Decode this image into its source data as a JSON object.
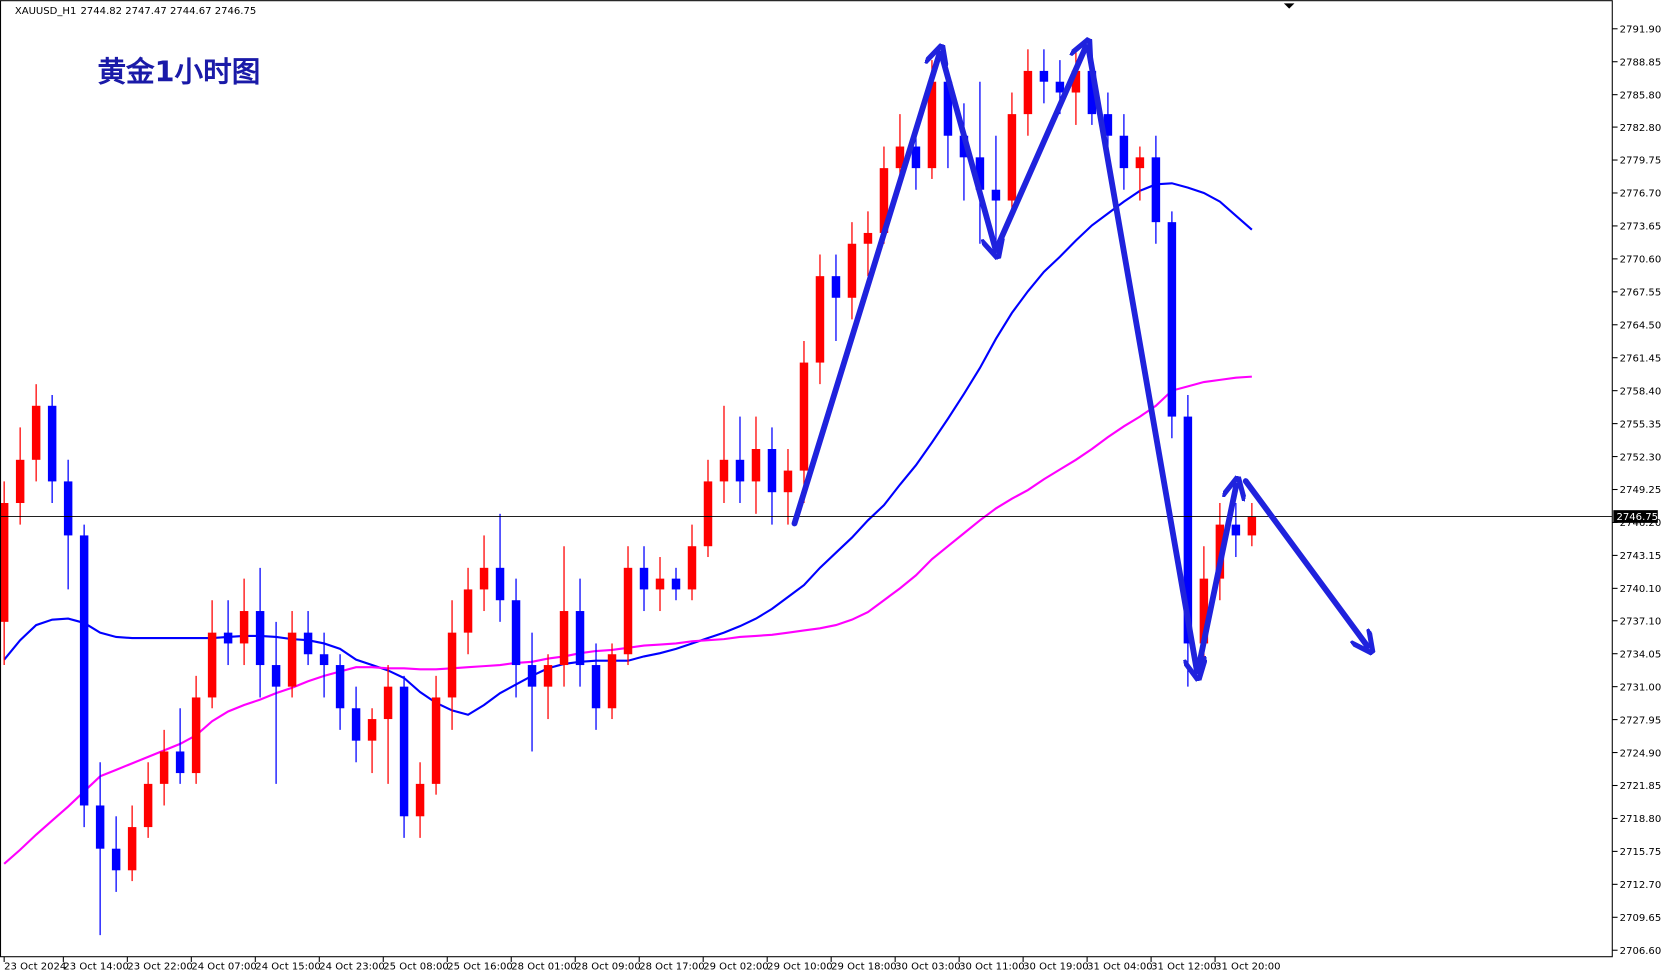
{
  "header": {
    "symbol": "XAUUSD_H1",
    "quote": "2744.82 2747.47 2744.67 2746.75"
  },
  "chart_data": {
    "type": "candlestick",
    "title": "黄金1小时图",
    "up_color": "#ff0000",
    "down_color": "#0000ff",
    "open": [
      2737,
      2748,
      2752,
      2757,
      2750,
      2745,
      2720,
      2716,
      2714,
      2718,
      2722,
      2725,
      2723,
      2730,
      2736,
      2735,
      2738,
      2733,
      2731,
      2736,
      2734,
      2733,
      2729,
      2726,
      2728,
      2731,
      2719,
      2722,
      2730,
      2736,
      2740,
      2742,
      2739,
      2733,
      2731,
      2733,
      2738,
      2733,
      2729,
      2734,
      2742,
      2740,
      2741,
      2740,
      2744,
      2750,
      2752,
      2750,
      2753,
      2749,
      2751,
      2761,
      2769,
      2767,
      2772,
      2773,
      2779,
      2781,
      2779,
      2787,
      2782,
      2780,
      2777,
      2776,
      2784,
      2788,
      2787,
      2786,
      2788,
      2784,
      2782,
      2779,
      2780,
      2774,
      2756,
      2735,
      2741,
      2746,
      2745
    ],
    "high": [
      2750,
      2755,
      2759,
      2758,
      2752,
      2746,
      2724,
      2719,
      2720,
      2724,
      2727,
      2729,
      2732,
      2739,
      2739,
      2741,
      2742,
      2737,
      2738,
      2738,
      2736,
      2734,
      2731,
      2729,
      2733,
      2732,
      2724,
      2732,
      2739,
      2742,
      2745,
      2747,
      2741,
      2736,
      2734,
      2744,
      2741,
      2735,
      2735,
      2744,
      2744,
      2743,
      2742,
      2746,
      2752,
      2757,
      2756,
      2756,
      2755,
      2753,
      2763,
      2771,
      2771,
      2774,
      2775,
      2781,
      2784,
      2783,
      2789,
      2788,
      2785,
      2787,
      2782,
      2786,
      2790,
      2790,
      2789,
      2790,
      2789,
      2786,
      2784,
      2781,
      2782,
      2775,
      2758,
      2744,
      2748,
      2748,
      2748
    ],
    "low": [
      2733,
      2746,
      2750,
      2748,
      2740,
      2718,
      2708,
      2712,
      2713,
      2717,
      2720,
      2722,
      2722,
      2729,
      2733,
      2733,
      2730,
      2722,
      2730,
      2733,
      2730,
      2727,
      2724,
      2723,
      2722,
      2717,
      2717,
      2721,
      2727,
      2734,
      2738,
      2737,
      2730,
      2725,
      2728,
      2731,
      2731,
      2727,
      2728,
      2733,
      2738,
      2738,
      2739,
      2739,
      2743,
      2748,
      2748,
      2747,
      2746,
      2746,
      2748,
      2759,
      2763,
      2765,
      2769,
      2772,
      2777,
      2777,
      2778,
      2779,
      2776,
      2772,
      2771,
      2775,
      2782,
      2785,
      2784,
      2783,
      2783,
      2780,
      2777,
      2776,
      2772,
      2754,
      2731,
      2733,
      2739,
      2743,
      2744
    ],
    "close": [
      2748,
      2752,
      2757,
      2750,
      2745,
      2720,
      2716,
      2714,
      2718,
      2722,
      2725,
      2723,
      2730,
      2736,
      2735,
      2738,
      2733,
      2731,
      2736,
      2734,
      2733,
      2729,
      2726,
      2728,
      2731,
      2719,
      2722,
      2730,
      2736,
      2740,
      2742,
      2739,
      2733,
      2731,
      2733,
      2738,
      2733,
      2729,
      2734,
      2742,
      2740,
      2741,
      2740,
      2744,
      2750,
      2752,
      2750,
      2753,
      2749,
      2751,
      2761,
      2769,
      2767,
      2772,
      2773,
      2779,
      2781,
      2779,
      2787,
      2782,
      2780,
      2777,
      2776,
      2784,
      2788,
      2787,
      2786,
      2788,
      2784,
      2782,
      2779,
      2780,
      2774,
      2756,
      2735,
      2741,
      2746,
      2745,
      2746.75
    ],
    "series": [
      {
        "color": "#0000ff",
        "values": [
          2733.5,
          2735.3,
          2736.7,
          2737.2,
          2737.3,
          2736.9,
          2736.0,
          2735.6,
          2735.5,
          2735.5,
          2735.5,
          2735.5,
          2735.5,
          2735.5,
          2735.6,
          2735.7,
          2735.7,
          2735.6,
          2735.4,
          2735.3,
          2735.0,
          2734.5,
          2733.5,
          2733.0,
          2732.5,
          2731.8,
          2730.5,
          2729.5,
          2728.8,
          2728.4,
          2729.3,
          2730.4,
          2731.2,
          2732.0,
          2732.7,
          2733.1,
          2733.3,
          2733.4,
          2733.4,
          2733.4,
          2733.8,
          2734.1,
          2734.5,
          2735.0,
          2735.5,
          2736.0,
          2736.6,
          2737.3,
          2738.2,
          2739.3,
          2740.4,
          2742.0,
          2743.4,
          2744.8,
          2746.4,
          2747.8,
          2749.7,
          2751.5,
          2753.6,
          2755.8,
          2758.1,
          2760.5,
          2763.2,
          2765.6,
          2767.6,
          2769.4,
          2770.8,
          2772.3,
          2773.7,
          2774.8,
          2775.9,
          2776.9,
          2777.5,
          2777.6,
          2777.2,
          2776.7,
          2775.9,
          2774.6,
          2773.3
        ]
      },
      {
        "color": "#ff00ff",
        "values": [
          2714.6,
          2715.9,
          2717.3,
          2718.6,
          2719.9,
          2721.3,
          2722.7,
          2723.3,
          2723.9,
          2724.5,
          2725.1,
          2725.7,
          2726.5,
          2727.8,
          2728.7,
          2729.3,
          2729.8,
          2730.4,
          2730.9,
          2731.5,
          2732.0,
          2732.4,
          2732.8,
          2732.8,
          2732.7,
          2732.7,
          2732.6,
          2732.6,
          2732.7,
          2732.8,
          2732.9,
          2733.0,
          2733.2,
          2733.3,
          2733.6,
          2733.8,
          2734.1,
          2734.3,
          2734.4,
          2734.6,
          2734.8,
          2734.9,
          2735.0,
          2735.2,
          2735.3,
          2735.4,
          2735.6,
          2735.7,
          2735.8,
          2736.0,
          2736.2,
          2736.4,
          2736.7,
          2737.2,
          2737.9,
          2739.0,
          2740.1,
          2741.3,
          2742.8,
          2744.0,
          2745.2,
          2746.4,
          2747.5,
          2748.4,
          2749.2,
          2750.2,
          2751.1,
          2752.0,
          2753.0,
          2754.1,
          2755.1,
          2756.0,
          2757.0,
          2758.4,
          2758.8,
          2759.2,
          2759.4,
          2759.6,
          2759.7
        ]
      }
    ],
    "current_price": 2746.75,
    "xlim": [
      -0.26,
      100.53
    ],
    "xticks": [
      {
        "value": 0,
        "label": "23 Oct 2024"
      },
      {
        "value": 3.7,
        "label": "23 Oct 14:00"
      },
      {
        "value": 7.7,
        "label": "23 Oct 22:00"
      },
      {
        "value": 11.7,
        "label": "24 Oct 07:00"
      },
      {
        "value": 15.7,
        "label": "24 Oct 15:00"
      },
      {
        "value": 19.7,
        "label": "24 Oct 23:00"
      },
      {
        "value": 23.7,
        "label": "25 Oct 08:00"
      },
      {
        "value": 27.7,
        "label": "25 Oct 16:00"
      },
      {
        "value": 31.7,
        "label": "28 Oct 01:00"
      },
      {
        "value": 35.7,
        "label": "28 Oct 09:00"
      },
      {
        "value": 39.7,
        "label": "28 Oct 17:00"
      },
      {
        "value": 43.7,
        "label": "29 Oct 02:00"
      },
      {
        "value": 47.7,
        "label": "29 Oct 10:00"
      },
      {
        "value": 51.7,
        "label": "29 Oct 18:00"
      },
      {
        "value": 55.7,
        "label": "30 Oct 03:00"
      },
      {
        "value": 59.7,
        "label": "30 Oct 11:00"
      },
      {
        "value": 63.7,
        "label": "30 Oct 19:00"
      },
      {
        "value": 67.7,
        "label": "31 Oct 04:00"
      },
      {
        "value": 71.7,
        "label": "31 Oct 12:00"
      },
      {
        "value": 75.7,
        "label": "31 Oct 20:00"
      }
    ],
    "ylim": [
      2706.0,
      2794.55
    ],
    "yticks": [
      {
        "value": 2791.9,
        "label": "2791.90"
      },
      2788.85,
      {
        "value": 2785.8,
        "label": "2785.80"
      },
      {
        "value": 2782.8,
        "label": "2782.80"
      },
      2779.75,
      {
        "value": 2776.7,
        "label": "2776.70"
      },
      2773.65,
      {
        "value": 2770.6,
        "label": "2770.60"
      },
      2767.55,
      {
        "value": 2764.5,
        "label": "2764.50"
      },
      2761.45,
      {
        "value": 2758.4,
        "label": "2758.40"
      },
      2755.35,
      {
        "value": 2752.3,
        "label": "2752.30"
      },
      2749.25,
      {
        "value": 2746.2,
        "label": "2746.20"
      },
      2743.15,
      {
        "value": 2740.1,
        "label": "2740.10"
      },
      {
        "value": 2737.1,
        "label": "2737.10"
      },
      2734.05,
      {
        "value": 2731,
        "label": "2731.00"
      },
      2727.95,
      {
        "value": 2724.9,
        "label": "2724.90"
      },
      2721.85,
      {
        "value": 2718.8,
        "label": "2718.80"
      },
      2715.75,
      {
        "value": 2712.7,
        "label": "2712.70"
      },
      2709.65,
      {
        "value": 2706.6,
        "label": "2706.60"
      }
    ]
  }
}
